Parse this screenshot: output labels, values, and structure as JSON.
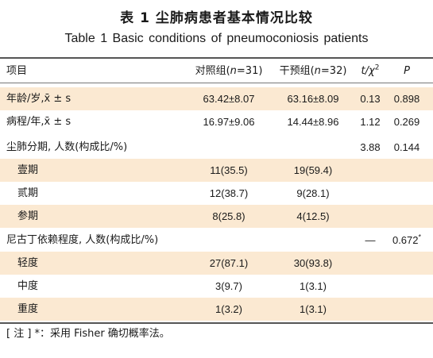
{
  "title_cn": "表 1   尘肺病患者基本情况比较",
  "title_en": "Table 1    Basic conditions of pneumoconiosis patients",
  "header": {
    "item": "项目",
    "control_prefix": "对照组(",
    "control_n": "n",
    "control_suffix": "=31)",
    "intervention_prefix": "干预组(",
    "intervention_n": "n",
    "intervention_suffix": "=32)",
    "t_part": "t",
    "chi_part": "/χ",
    "chi_sup": "2",
    "p": "P"
  },
  "rows": [
    {
      "label": "年龄/岁,x̄ ± s",
      "control": "63.42±8.07",
      "intervention": "63.16±8.09",
      "stat": "0.13",
      "p": "0.898",
      "p_sup": ""
    },
    {
      "label": "病程/年,x̄ ± s",
      "control": "16.97±9.06",
      "intervention": "14.44±8.96",
      "stat": "1.12",
      "p": "0.269",
      "p_sup": ""
    },
    {
      "label": "尘肺分期, 人数(构成比/%)",
      "control": "",
      "intervention": "",
      "stat": "3.88",
      "p": "0.144",
      "p_sup": ""
    },
    {
      "label": "壹期",
      "control": "11(35.5)",
      "intervention": "19(59.4)",
      "stat": "",
      "p": "",
      "p_sup": ""
    },
    {
      "label": "贰期",
      "control": "12(38.7)",
      "intervention": "9(28.1)",
      "stat": "",
      "p": "",
      "p_sup": ""
    },
    {
      "label": "参期",
      "control": "8(25.8)",
      "intervention": "4(12.5)",
      "stat": "",
      "p": "",
      "p_sup": ""
    },
    {
      "label": "尼古丁依赖程度, 人数(构成比/%)",
      "control": "",
      "intervention": "",
      "stat": "—",
      "p": "0.672",
      "p_sup": "*"
    },
    {
      "label": "轻度",
      "control": "27(87.1)",
      "intervention": "30(93.8)",
      "stat": "",
      "p": "",
      "p_sup": ""
    },
    {
      "label": "中度",
      "control": "3(9.7)",
      "intervention": "1(3.1)",
      "stat": "",
      "p": "",
      "p_sup": ""
    },
    {
      "label": "重度",
      "control": "1(3.2)",
      "intervention": "1(3.1)",
      "stat": "",
      "p": "",
      "p_sup": ""
    }
  ],
  "note": "[ 注 ] *：采用 Fisher 确切概率法。",
  "colors": {
    "shade": "#fbe9d2",
    "rule": "#555555"
  }
}
